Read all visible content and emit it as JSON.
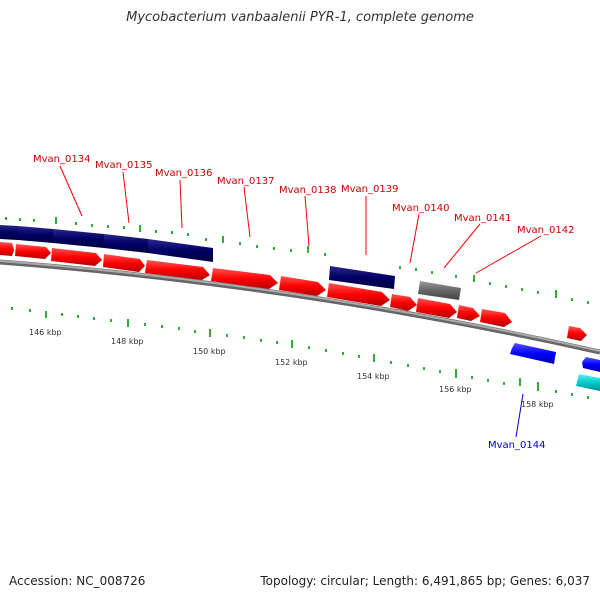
{
  "title": "Mycobacterium vanbaalenii PYR-1, complete genome",
  "colors": {
    "forward": "#ff0000",
    "reverse": "#000066",
    "rna": "#666666",
    "minus_blue": "#0000ff",
    "cyan": "#00cccc",
    "backbone": "#999999",
    "tick": "#009900",
    "label_top": "#cc0000",
    "label_bottom": "#0000cc"
  },
  "footer": {
    "accession": "Accession: NC_008726",
    "summary": "Topology: circular; Length: 6,491,865 bp; Genes: 6,037"
  },
  "labels": {
    "g134": "Mvan_0134",
    "g135": "Mvan_0135",
    "g136": "Mvan_0136",
    "g137": "Mvan_0137",
    "g138": "Mvan_0138",
    "g139": "Mvan_0139",
    "g140": "Mvan_0140",
    "g141": "Mvan_0141",
    "g142": "Mvan_0142",
    "g144": "Mvan_0144"
  },
  "scale": {
    "k146": "146 kbp",
    "k148": "148 kbp",
    "k150": "150 kbp",
    "k152": "152 kbp",
    "k154": "154 kbp",
    "k156": "156 kbp",
    "k158": "158 kbp"
  }
}
